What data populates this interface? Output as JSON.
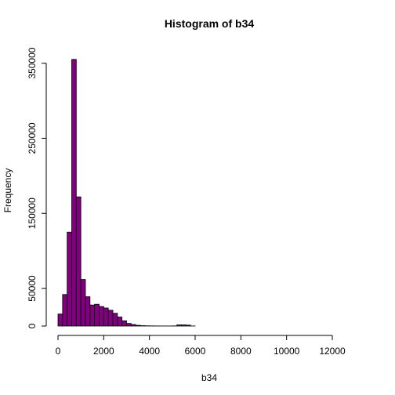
{
  "chart_data": {
    "type": "bar",
    "title": "Histogram of b34",
    "xlabel": "b34",
    "ylabel": "Frequency",
    "bar_color": "#800080",
    "bin_width": 200,
    "xlim": [
      0,
      13200
    ],
    "ylim": [
      0,
      360000
    ],
    "x_ticks": [
      0,
      2000,
      4000,
      6000,
      8000,
      10000,
      12000
    ],
    "y_ticks": [
      0,
      50000,
      150000,
      250000,
      350000
    ],
    "bins": [
      {
        "x0": 0,
        "x1": 200,
        "count": 16000
      },
      {
        "x0": 200,
        "x1": 400,
        "count": 42000
      },
      {
        "x0": 400,
        "x1": 600,
        "count": 125000
      },
      {
        "x0": 600,
        "x1": 800,
        "count": 355000
      },
      {
        "x0": 800,
        "x1": 1000,
        "count": 172000
      },
      {
        "x0": 1000,
        "x1": 1200,
        "count": 62000
      },
      {
        "x0": 1200,
        "x1": 1400,
        "count": 39000
      },
      {
        "x0": 1400,
        "x1": 1600,
        "count": 28000
      },
      {
        "x0": 1600,
        "x1": 1800,
        "count": 29000
      },
      {
        "x0": 1800,
        "x1": 2000,
        "count": 26000
      },
      {
        "x0": 2000,
        "x1": 2200,
        "count": 24000
      },
      {
        "x0": 2200,
        "x1": 2400,
        "count": 21000
      },
      {
        "x0": 2400,
        "x1": 2600,
        "count": 17000
      },
      {
        "x0": 2600,
        "x1": 2800,
        "count": 12000
      },
      {
        "x0": 2800,
        "x1": 3000,
        "count": 7000
      },
      {
        "x0": 3000,
        "x1": 3200,
        "count": 3500
      },
      {
        "x0": 3200,
        "x1": 3400,
        "count": 2000
      },
      {
        "x0": 3400,
        "x1": 3600,
        "count": 1000
      },
      {
        "x0": 3600,
        "x1": 3800,
        "count": 500
      },
      {
        "x0": 3800,
        "x1": 4000,
        "count": 300
      },
      {
        "x0": 4000,
        "x1": 4200,
        "count": 200
      },
      {
        "x0": 4200,
        "x1": 4400,
        "count": 150
      },
      {
        "x0": 4400,
        "x1": 4600,
        "count": 100
      },
      {
        "x0": 4600,
        "x1": 4800,
        "count": 100
      },
      {
        "x0": 4800,
        "x1": 5000,
        "count": 100
      },
      {
        "x0": 5000,
        "x1": 5200,
        "count": 200
      },
      {
        "x0": 5200,
        "x1": 5400,
        "count": 1500
      },
      {
        "x0": 5400,
        "x1": 5600,
        "count": 1500
      },
      {
        "x0": 5600,
        "x1": 5800,
        "count": 1200
      },
      {
        "x0": 5800,
        "x1": 6000,
        "count": 100
      },
      {
        "x0": 6000,
        "x1": 13200,
        "count": 0
      }
    ]
  }
}
